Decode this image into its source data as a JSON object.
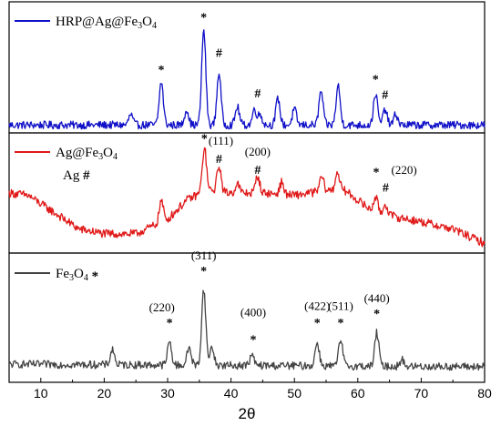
{
  "chart_data": {
    "type": "line",
    "xlabel": "2θ",
    "xlim": [
      5,
      80
    ],
    "x_ticks": [
      "10",
      "20",
      "30",
      "40",
      "50",
      "60",
      "70",
      "80"
    ],
    "panels": [
      {
        "legend_prefix": "HRP@Ag@Fe",
        "legend_sub1": "3",
        "legend_mid": "O",
        "legend_sub2": "4",
        "legend_marker": "",
        "color": "#1010c8",
        "series": [
          {
            "name": "HRP@Ag@Fe3O4",
            "peaks": [
              [
                24.2,
                0.08
              ],
              [
                29,
                0.33
              ],
              [
                33,
                0.12
              ],
              [
                35.7,
                0.73
              ],
              [
                38.1,
                0.4
              ],
              [
                41,
                0.14
              ],
              [
                43.7,
                0.12
              ],
              [
                44.6,
                0.08
              ],
              [
                47.4,
                0.2
              ],
              [
                50,
                0.12
              ],
              [
                54.2,
                0.26
              ],
              [
                56.9,
                0.3
              ],
              [
                62.8,
                0.24
              ],
              [
                64.3,
                0.12
              ],
              [
                66,
                0.08
              ]
            ],
            "baseline": [
              [
                5,
                0.06
              ],
              [
                80,
                0.06
              ]
            ],
            "noise": 0.03
          }
        ],
        "annotations": [
          {
            "x": 29,
            "y": 0.45,
            "text": "*"
          },
          {
            "x": 35.7,
            "y": 0.85,
            "text": "*"
          },
          {
            "x": 38.1,
            "y": 0.58,
            "text": "#"
          },
          {
            "x": 44.2,
            "y": 0.27,
            "text": "#"
          },
          {
            "x": 62.8,
            "y": 0.38,
            "text": "*"
          },
          {
            "x": 64.3,
            "y": 0.26,
            "text": "#"
          }
        ]
      },
      {
        "legend_prefix": "Ag@Fe",
        "legend_sub1": "3",
        "legend_mid": "O",
        "legend_sub2": "4",
        "legend_marker": "",
        "legend2_text": "Ag",
        "legend2_marker": "#",
        "color": "#e01818",
        "series": [
          {
            "name": "Ag@Fe3O4",
            "peaks": [
              [
                29,
                0.18
              ],
              [
                35.8,
                0.36
              ],
              [
                38.1,
                0.22
              ],
              [
                41,
                0.08
              ],
              [
                44.2,
                0.14
              ],
              [
                48,
                0.1
              ],
              [
                54.3,
                0.12
              ],
              [
                56.8,
                0.16
              ],
              [
                62.8,
                0.12
              ],
              [
                64.4,
                0.08
              ]
            ],
            "baseline": [
              [
                5,
                0.5
              ],
              [
                8,
                0.48
              ],
              [
                12,
                0.34
              ],
              [
                16,
                0.2
              ],
              [
                20,
                0.16
              ],
              [
                25,
                0.16
              ],
              [
                30,
                0.28
              ],
              [
                33,
                0.44
              ],
              [
                36,
                0.52
              ],
              [
                40,
                0.5
              ],
              [
                45,
                0.5
              ],
              [
                50,
                0.48
              ],
              [
                55,
                0.52
              ],
              [
                58,
                0.52
              ],
              [
                62,
                0.36
              ],
              [
                66,
                0.3
              ],
              [
                70,
                0.26
              ],
              [
                75,
                0.2
              ],
              [
                80,
                0.08
              ]
            ],
            "noise": 0.035
          }
        ],
        "annotations": [
          {
            "x": 35.8,
            "y": 0.92,
            "text": "*"
          },
          {
            "x": 38.1,
            "y": 0.75,
            "text": "#"
          },
          {
            "x": 38.4,
            "y": 0.9,
            "text": "(111)"
          },
          {
            "x": 44.2,
            "y": 0.66,
            "text": "#"
          },
          {
            "x": 44.2,
            "y": 0.81,
            "text": "(200)"
          },
          {
            "x": 62.9,
            "y": 0.64,
            "text": "*"
          },
          {
            "x": 64.4,
            "y": 0.51,
            "text": "#"
          },
          {
            "x": 67.3,
            "y": 0.66,
            "text": "(220)"
          }
        ]
      },
      {
        "legend_prefix": "Fe",
        "legend_sub1": "3",
        "legend_mid": "O",
        "legend_sub2": "4",
        "legend_marker": "*",
        "color": "#444444",
        "series": [
          {
            "name": "Fe3O4",
            "peaks": [
              [
                21.3,
                0.12
              ],
              [
                30.3,
                0.18
              ],
              [
                33.4,
                0.14
              ],
              [
                35.7,
                0.59
              ],
              [
                37,
                0.14
              ],
              [
                43.3,
                0.08
              ],
              [
                53.6,
                0.18
              ],
              [
                57.3,
                0.2
              ],
              [
                63,
                0.26
              ],
              [
                67,
                0.05
              ]
            ],
            "baseline": [
              [
                5,
                0.14
              ],
              [
                80,
                0.12
              ]
            ],
            "noise": 0.03
          }
        ],
        "annotations": [
          {
            "x": 30.3,
            "y": 0.43,
            "text": "*"
          },
          {
            "x": 29.1,
            "y": 0.55,
            "text": "(220)"
          },
          {
            "x": 35.7,
            "y": 0.83,
            "text": "*"
          },
          {
            "x": 35.7,
            "y": 0.95,
            "text": "(311)"
          },
          {
            "x": 43.5,
            "y": 0.3,
            "text": "*"
          },
          {
            "x": 43.5,
            "y": 0.51,
            "text": "(400)"
          },
          {
            "x": 53.6,
            "y": 0.43,
            "text": "*"
          },
          {
            "x": 53.6,
            "y": 0.56,
            "text": "(422)"
          },
          {
            "x": 57.3,
            "y": 0.43,
            "text": "*"
          },
          {
            "x": 57.3,
            "y": 0.56,
            "text": "(511)"
          },
          {
            "x": 63,
            "y": 0.5,
            "text": "*"
          },
          {
            "x": 63,
            "y": 0.62,
            "text": "(440)"
          }
        ]
      }
    ]
  }
}
